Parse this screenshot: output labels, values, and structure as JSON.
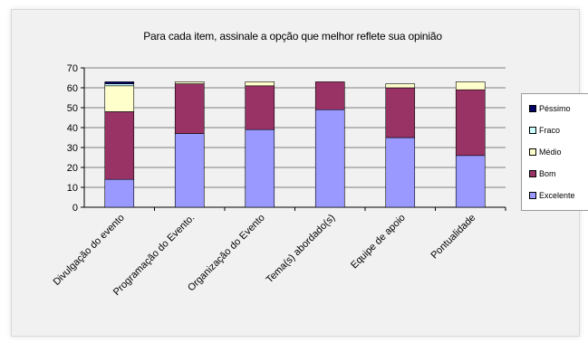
{
  "chart_data": {
    "type": "bar",
    "stacked": true,
    "title": "Para cada item, assinale a opção que melhor reflete sua opinião",
    "xlabel": "",
    "ylabel": "",
    "ylim": [
      0,
      70
    ],
    "yticks": [
      0,
      10,
      20,
      30,
      40,
      50,
      60,
      70
    ],
    "grid": true,
    "legend_position": "right",
    "categories": [
      "Divulgação do evento",
      "Programação do Evento.",
      "Organização do Evento",
      "Tema(s) abordado(s)",
      "Equipe de apoio",
      "Pontualidade"
    ],
    "series": [
      {
        "name": "Excelente",
        "color": "#9999ff",
        "values": [
          14,
          37,
          39,
          49,
          35,
          26
        ]
      },
      {
        "name": "Bom",
        "color": "#993366",
        "values": [
          34,
          25,
          22,
          14,
          25,
          33
        ]
      },
      {
        "name": "Médio",
        "color": "#ffffcc",
        "values": [
          13,
          1,
          2,
          0,
          2,
          4
        ]
      },
      {
        "name": "Fraco",
        "color": "#ccffff",
        "values": [
          1,
          0,
          0,
          0,
          0,
          0
        ]
      },
      {
        "name": "Péssimo",
        "color": "#000066",
        "values": [
          1,
          0,
          0,
          0,
          0,
          0
        ]
      }
    ],
    "legend_order": [
      "Péssimo",
      "Fraco",
      "Médio",
      "Bom",
      "Excelente"
    ]
  }
}
